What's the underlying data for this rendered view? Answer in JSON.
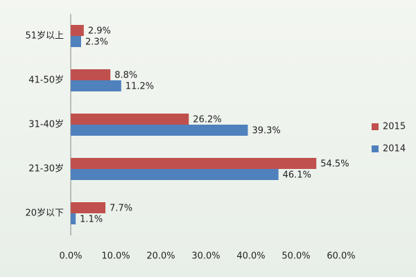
{
  "chart_data": {
    "type": "hbar",
    "categories": [
      "51岁以上",
      "41-50岁",
      "31-40岁",
      "21-30岁",
      "20岁以下"
    ],
    "series": [
      {
        "name": "2015",
        "color": "#c0504d",
        "values": [
          2.9,
          8.8,
          26.2,
          54.5,
          7.7
        ],
        "value_labels": [
          "2.9%",
          "8.8%",
          "26.2%",
          "54.5%",
          "7.7%"
        ]
      },
      {
        "name": "2014",
        "color": "#4f81bd",
        "values": [
          2.3,
          11.2,
          39.3,
          46.1,
          1.1
        ],
        "value_labels": [
          "2.3%",
          "11.2%",
          "39.3%",
          "46.1%",
          "1.1%"
        ]
      }
    ],
    "xlim": [
      0,
      60
    ],
    "xticks": [
      {
        "value": 0,
        "label": "0.0%"
      },
      {
        "value": 10,
        "label": "10.0%"
      },
      {
        "value": 20,
        "label": "20.0%"
      },
      {
        "value": 30,
        "label": "30.0%"
      },
      {
        "value": 40,
        "label": "40.0%"
      },
      {
        "value": 50,
        "label": "50.0%"
      },
      {
        "value": 60,
        "label": "60.0%"
      }
    ],
    "legend": "right"
  }
}
